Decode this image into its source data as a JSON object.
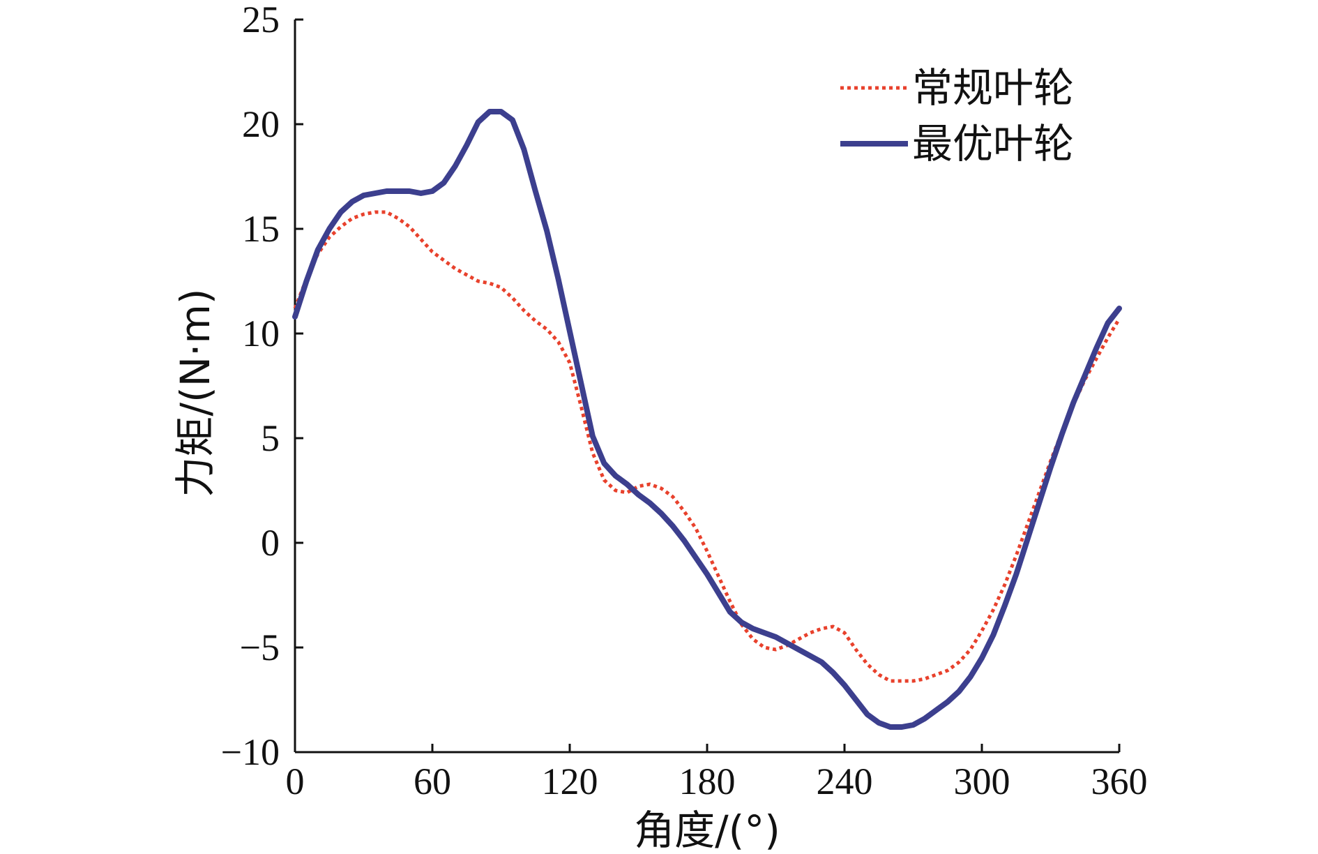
{
  "chart_data": {
    "type": "line",
    "title": "",
    "xlabel": "角度/(°)",
    "ylabel": "力矩/(N·m)",
    "xlim": [
      0,
      360
    ],
    "ylim": [
      -10,
      25
    ],
    "xticks": [
      0,
      60,
      120,
      180,
      240,
      300,
      360
    ],
    "yticks": [
      -10,
      -5,
      0,
      5,
      10,
      15,
      20,
      25
    ],
    "xtick_labels": [
      "0",
      "60",
      "120",
      "180",
      "240",
      "300",
      "360"
    ],
    "ytick_labels": [
      "−10",
      "−5",
      "0",
      "5",
      "10",
      "15",
      "20",
      "25"
    ],
    "grid": false,
    "legend_position": "top-right",
    "series": [
      {
        "name": "常规叶轮",
        "style": "dotted",
        "color": "#e8412c",
        "x": [
          0,
          5,
          10,
          15,
          20,
          25,
          30,
          35,
          40,
          45,
          50,
          55,
          60,
          65,
          70,
          75,
          80,
          85,
          90,
          95,
          100,
          105,
          110,
          115,
          120,
          125,
          130,
          135,
          140,
          145,
          150,
          155,
          160,
          165,
          170,
          175,
          180,
          185,
          190,
          195,
          200,
          205,
          210,
          215,
          220,
          225,
          230,
          235,
          240,
          245,
          250,
          255,
          260,
          265,
          270,
          275,
          280,
          285,
          290,
          295,
          300,
          305,
          310,
          315,
          320,
          325,
          330,
          335,
          340,
          345,
          350,
          355,
          360
        ],
        "y": [
          11.2,
          12.6,
          13.8,
          14.6,
          15.1,
          15.5,
          15.7,
          15.8,
          15.8,
          15.5,
          15.1,
          14.5,
          13.9,
          13.5,
          13.1,
          12.8,
          12.5,
          12.4,
          12.2,
          11.7,
          11.1,
          10.6,
          10.2,
          9.6,
          8.6,
          6.5,
          4.3,
          3.0,
          2.5,
          2.4,
          2.7,
          2.8,
          2.6,
          2.2,
          1.5,
          0.7,
          -0.4,
          -1.6,
          -2.8,
          -3.9,
          -4.6,
          -5.0,
          -5.1,
          -4.9,
          -4.6,
          -4.3,
          -4.1,
          -4.0,
          -4.3,
          -5.1,
          -5.8,
          -6.3,
          -6.6,
          -6.6,
          -6.6,
          -6.5,
          -6.3,
          -6.1,
          -5.7,
          -5.1,
          -4.2,
          -3.2,
          -2.0,
          -0.6,
          0.9,
          2.4,
          3.9,
          5.3,
          6.6,
          7.8,
          8.8,
          9.8,
          10.7
        ]
      },
      {
        "name": "最优叶轮",
        "style": "solid",
        "color": "#3c3f8e",
        "x": [
          0,
          5,
          10,
          15,
          20,
          25,
          30,
          35,
          40,
          45,
          50,
          55,
          60,
          65,
          70,
          75,
          80,
          85,
          90,
          95,
          100,
          105,
          110,
          115,
          120,
          125,
          130,
          135,
          140,
          145,
          150,
          155,
          160,
          165,
          170,
          175,
          180,
          185,
          190,
          195,
          200,
          205,
          210,
          215,
          220,
          225,
          230,
          235,
          240,
          245,
          250,
          255,
          260,
          265,
          270,
          275,
          280,
          285,
          290,
          295,
          300,
          305,
          310,
          315,
          320,
          325,
          330,
          335,
          340,
          345,
          350,
          355,
          360
        ],
        "y": [
          10.8,
          12.5,
          14.0,
          15.0,
          15.8,
          16.3,
          16.6,
          16.7,
          16.8,
          16.8,
          16.8,
          16.7,
          16.8,
          17.2,
          18.0,
          19.0,
          20.1,
          20.6,
          20.6,
          20.2,
          18.8,
          16.8,
          14.9,
          12.6,
          10.1,
          7.6,
          5.1,
          3.8,
          3.2,
          2.8,
          2.3,
          1.9,
          1.4,
          0.8,
          0.1,
          -0.7,
          -1.5,
          -2.4,
          -3.3,
          -3.8,
          -4.1,
          -4.3,
          -4.5,
          -4.8,
          -5.1,
          -5.4,
          -5.7,
          -6.2,
          -6.8,
          -7.5,
          -8.2,
          -8.6,
          -8.8,
          -8.8,
          -8.7,
          -8.4,
          -8.0,
          -7.6,
          -7.1,
          -6.4,
          -5.5,
          -4.4,
          -3.0,
          -1.5,
          0.2,
          1.9,
          3.6,
          5.2,
          6.7,
          8.0,
          9.3,
          10.5,
          11.2
        ]
      }
    ]
  }
}
